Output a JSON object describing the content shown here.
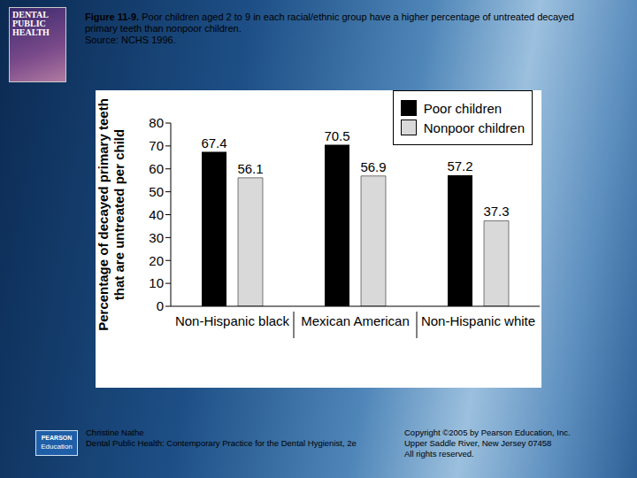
{
  "chart_data": {
    "type": "bar",
    "title": "Figure 11-9. Poor children aged 2 to 9 in each racial/ethnic group have a higher percentage of untreated decayed primary teeth than nonpoor children.",
    "subtitle": "Source: NCHS 1996.",
    "y_label": "Percentage of decayed primary teeth that are untreated per child",
    "categories": [
      "Non-Hispanic black",
      "Mexican American",
      "Non-Hispanic white"
    ],
    "series": [
      {
        "name": "Poor children",
        "color": "#000000",
        "values": [
          67.4,
          70.5,
          57.2
        ]
      },
      {
        "name": "Nonpoor children",
        "color": "#d9d9d9",
        "values": [
          56.1,
          56.9,
          37.3
        ]
      }
    ],
    "ylim": [
      0,
      80
    ],
    "yticks": [
      0,
      10,
      20,
      30,
      40,
      50,
      60,
      70,
      80
    ],
    "grid": false,
    "legend": "top-right",
    "data_labels": true,
    "annotations": [
      "Christine Nathe",
      "Dental Public Health: Contemporary Practice for the Dental Hygienist, 2e",
      "Copyright ©2005 by Pearson Education, Inc.",
      "Upper Saddle River, New Jersey 07458",
      "All rights reserved.",
      "DENTAL PUBLIC HEALTH",
      "PEARSON",
      "Education"
    ]
  }
}
